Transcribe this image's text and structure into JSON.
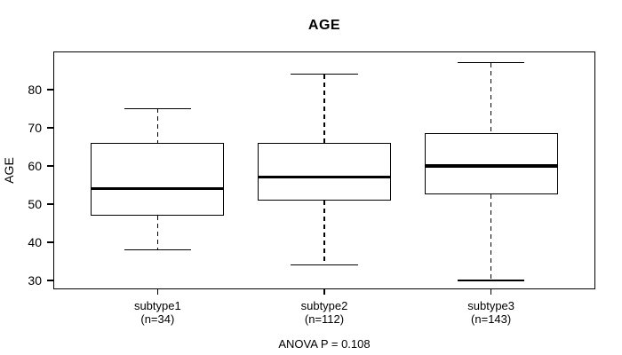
{
  "title": "AGE",
  "chart_data": {
    "type": "boxplot",
    "title": "AGE",
    "xlabel": "",
    "ylabel": "AGE",
    "sub_annotation": "ANOVA P = 0.108",
    "yticks": [
      30,
      40,
      50,
      60,
      70,
      80
    ],
    "ylim": [
      27.9,
      89.7
    ],
    "grid": false,
    "orientation": "vertical",
    "series": [
      {
        "name": "subtype1",
        "sublabel": "(n=34)",
        "n": 34,
        "whisker_low": 38,
        "q1": 47,
        "median": 54,
        "q3": 66,
        "whisker_high": 75
      },
      {
        "name": "subtype2",
        "sublabel": "(n=112)",
        "n": 112,
        "whisker_low": 34,
        "q1": 51,
        "median": 57,
        "q3": 66,
        "whisker_high": 84
      },
      {
        "name": "subtype3",
        "sublabel": "(n=143)",
        "n": 143,
        "whisker_low": 30,
        "q1": 52.5,
        "median": 60,
        "q3": 68.5,
        "whisker_high": 87
      }
    ],
    "colors": {
      "line": "#000000",
      "box_fill": "#ffffff",
      "background": "#ffffff"
    }
  }
}
